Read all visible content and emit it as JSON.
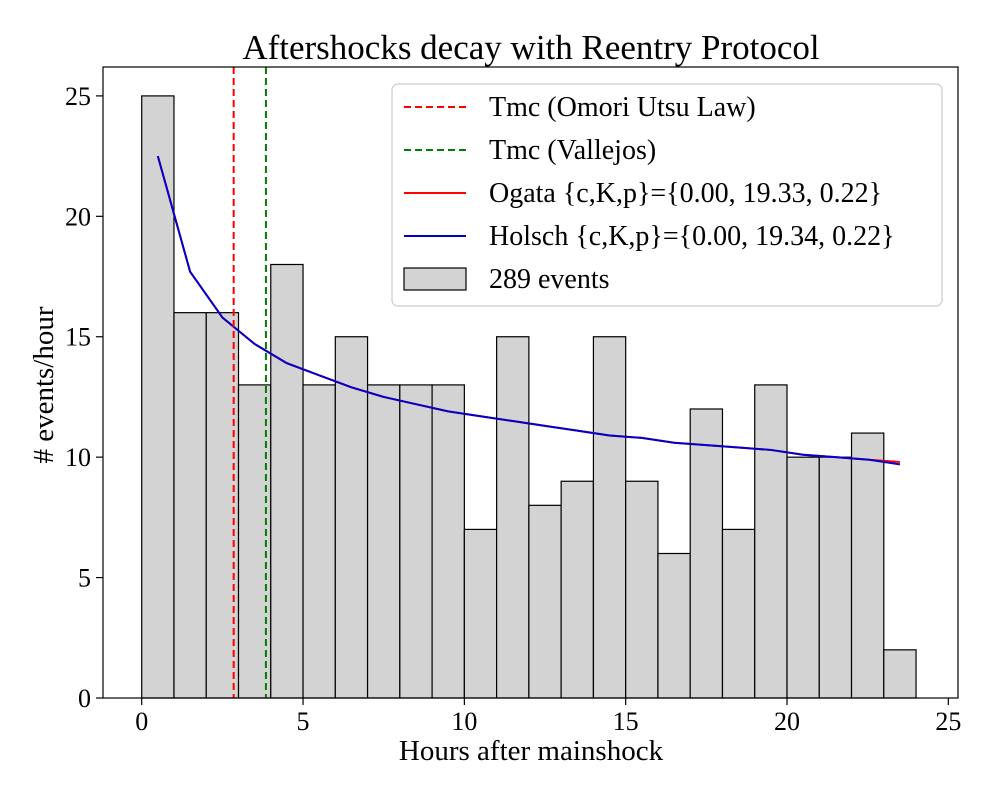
{
  "chart_data": {
    "type": "bar",
    "title": "Aftershocks decay with Reentry Protocol",
    "xlabel": "Hours after mainshock",
    "ylabel": "# events/hour",
    "xlim": [
      -1.2,
      25.3
    ],
    "ylim": [
      0,
      26.2
    ],
    "xticks": [
      0,
      5,
      10,
      15,
      20,
      25
    ],
    "yticks": [
      0,
      5,
      10,
      15,
      20,
      25
    ],
    "grid": false,
    "legend_position": "top-right",
    "histogram": {
      "name": "289 events",
      "bin_width": 1,
      "bin_edges_start": [
        0,
        1,
        2,
        3,
        4,
        5,
        6,
        7,
        8,
        9,
        10,
        11,
        12,
        13,
        14,
        15,
        16,
        17,
        18,
        19,
        20,
        21,
        22,
        23
      ],
      "values": [
        25,
        16,
        16,
        13,
        18,
        13,
        15,
        13,
        13,
        13,
        7,
        15,
        8,
        9,
        15,
        9,
        6,
        12,
        7,
        13,
        10,
        10,
        11,
        2
      ],
      "color": "#d3d3d3",
      "edgecolor": "#000000"
    },
    "vlines": [
      {
        "name": "Tmc (Omori Utsu Law)",
        "x": 2.85,
        "color": "#ff0000",
        "style": "dashed"
      },
      {
        "name": "Tmc (Vallejos)",
        "x": 3.85,
        "color": "#008000",
        "style": "dashed"
      }
    ],
    "series": [
      {
        "name": "Ogata {c,K,p}={0.00, 19.33, 0.22}",
        "color": "#ff0000",
        "x": [
          0.5,
          1.5,
          2.5,
          3.5,
          4.5,
          5.5,
          6.5,
          7.5,
          8.5,
          9.5,
          10.5,
          11.5,
          12.5,
          13.5,
          14.5,
          15.5,
          16.5,
          17.5,
          18.5,
          19.5,
          20.5,
          21.5,
          22.5,
          23.5
        ],
        "y": [
          22.5,
          17.7,
          15.8,
          14.7,
          13.9,
          13.4,
          12.9,
          12.5,
          12.2,
          11.9,
          11.7,
          11.5,
          11.3,
          11.1,
          10.9,
          10.8,
          10.6,
          10.5,
          10.4,
          10.3,
          10.1,
          10.0,
          9.9,
          9.8
        ]
      },
      {
        "name": "Holsch {c,K,p}={0.00, 19.34, 0.22}",
        "color": "#0000cd",
        "x": [
          0.5,
          1.5,
          2.5,
          3.5,
          4.5,
          5.5,
          6.5,
          7.5,
          8.5,
          9.5,
          10.5,
          11.5,
          12.5,
          13.5,
          14.5,
          15.5,
          16.5,
          17.5,
          18.5,
          19.5,
          20.5,
          21.5,
          22.5,
          23.5
        ],
        "y": [
          22.5,
          17.7,
          15.8,
          14.7,
          13.9,
          13.4,
          12.9,
          12.5,
          12.2,
          11.9,
          11.7,
          11.5,
          11.3,
          11.1,
          10.9,
          10.8,
          10.6,
          10.5,
          10.4,
          10.3,
          10.1,
          10.0,
          9.9,
          9.7
        ]
      }
    ]
  }
}
